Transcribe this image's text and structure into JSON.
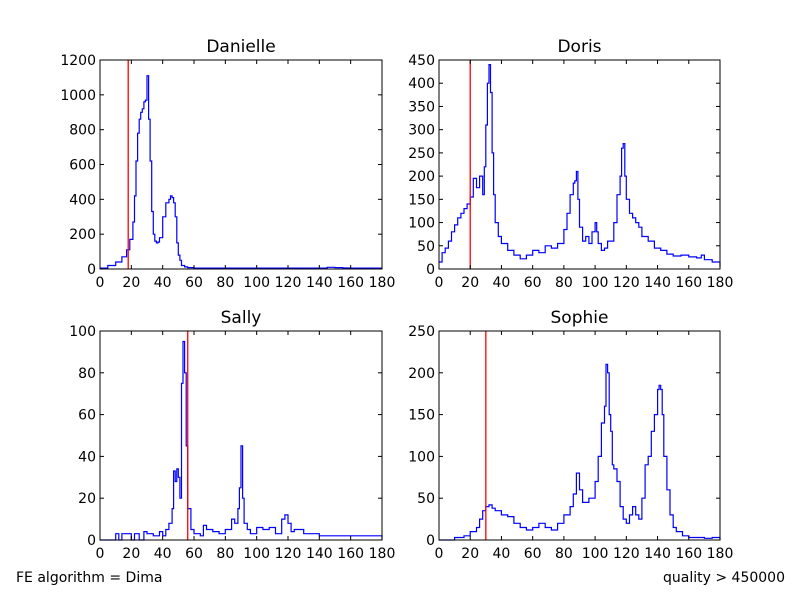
{
  "footer": {
    "left": "FE algorithm = Dima",
    "right": "quality > 450000"
  },
  "colors": {
    "histogram": "#0000ff",
    "marker": "#ff0000"
  },
  "chart_data": [
    {
      "type": "line",
      "title": "Danielle",
      "xlim": [
        0,
        180
      ],
      "ylim": [
        0,
        1200
      ],
      "xticks": [
        0,
        20,
        40,
        60,
        80,
        100,
        120,
        140,
        160,
        180
      ],
      "yticks": [
        0,
        200,
        400,
        600,
        800,
        1000,
        1200
      ],
      "marker_x": 18,
      "series": [
        {
          "step": true,
          "x": [
            0,
            5,
            10,
            14,
            17,
            19,
            21,
            22,
            23,
            24,
            25,
            26,
            27,
            28,
            29,
            30,
            31,
            32,
            33,
            34,
            35,
            36,
            37,
            38,
            40,
            42,
            44,
            45,
            46,
            47,
            48,
            49,
            50,
            51,
            52,
            54,
            56,
            60,
            80,
            100,
            120,
            140,
            145,
            150,
            155,
            160,
            180
          ],
          "y": [
            5,
            20,
            40,
            70,
            110,
            170,
            270,
            420,
            620,
            780,
            860,
            900,
            920,
            960,
            970,
            1110,
            860,
            620,
            330,
            200,
            160,
            150,
            155,
            180,
            300,
            380,
            400,
            420,
            410,
            380,
            300,
            150,
            80,
            50,
            20,
            12,
            8,
            5,
            5,
            5,
            5,
            5,
            10,
            8,
            6,
            5,
            5
          ]
        }
      ]
    },
    {
      "type": "line",
      "title": "Doris",
      "xlim": [
        0,
        180
      ],
      "ylim": [
        0,
        450
      ],
      "xticks": [
        0,
        20,
        40,
        60,
        80,
        100,
        120,
        140,
        160,
        180
      ],
      "yticks": [
        0,
        50,
        100,
        150,
        200,
        250,
        300,
        350,
        400,
        450
      ],
      "marker_x": 20,
      "series": [
        {
          "step": true,
          "x": [
            0,
            2,
            4,
            6,
            8,
            10,
            12,
            14,
            16,
            18,
            20,
            22,
            24,
            26,
            28,
            29,
            30,
            31,
            32,
            33,
            34,
            35,
            36,
            38,
            40,
            44,
            48,
            52,
            56,
            60,
            64,
            68,
            72,
            76,
            80,
            82,
            84,
            86,
            87,
            88,
            89,
            90,
            92,
            94,
            96,
            98,
            100,
            101,
            102,
            104,
            106,
            108,
            112,
            114,
            116,
            117,
            118,
            119,
            120,
            122,
            124,
            126,
            128,
            130,
            134,
            138,
            142,
            146,
            150,
            155,
            160,
            165,
            168,
            170,
            175,
            180
          ],
          "y": [
            15,
            35,
            45,
            60,
            80,
            95,
            110,
            120,
            130,
            140,
            155,
            195,
            175,
            200,
            160,
            220,
            310,
            400,
            440,
            380,
            250,
            160,
            100,
            70,
            55,
            40,
            30,
            22,
            30,
            40,
            35,
            50,
            45,
            55,
            85,
            120,
            160,
            185,
            190,
            210,
            150,
            90,
            60,
            70,
            55,
            80,
            100,
            80,
            55,
            40,
            45,
            60,
            100,
            160,
            200,
            260,
            270,
            200,
            150,
            120,
            110,
            100,
            90,
            70,
            60,
            45,
            40,
            32,
            28,
            30,
            26,
            24,
            30,
            20,
            15,
            5
          ]
        }
      ]
    },
    {
      "type": "line",
      "title": "Sally",
      "xlim": [
        0,
        180
      ],
      "ylim": [
        0,
        100
      ],
      "xticks": [
        0,
        20,
        40,
        60,
        80,
        100,
        120,
        140,
        160,
        180
      ],
      "yticks": [
        0,
        20,
        40,
        60,
        80,
        100
      ],
      "marker_x": 56,
      "series": [
        {
          "step": true,
          "x": [
            0,
            10,
            12,
            14,
            20,
            22,
            25,
            28,
            30,
            34,
            38,
            40,
            42,
            44,
            46,
            47,
            48,
            49,
            50,
            51,
            52,
            53,
            54,
            55,
            56,
            58,
            60,
            64,
            66,
            68,
            72,
            76,
            80,
            84,
            86,
            88,
            89,
            90,
            91,
            92,
            94,
            96,
            100,
            104,
            108,
            112,
            116,
            118,
            120,
            122,
            124,
            130,
            140,
            150,
            160,
            170,
            180
          ],
          "y": [
            0,
            3,
            0,
            3,
            0,
            3,
            0,
            4,
            3,
            2,
            4,
            2,
            5,
            8,
            15,
            33,
            28,
            34,
            30,
            20,
            75,
            95,
            80,
            45,
            15,
            5,
            3,
            2,
            7,
            5,
            4,
            3,
            5,
            10,
            8,
            15,
            25,
            45,
            20,
            8,
            5,
            3,
            6,
            5,
            6,
            3,
            10,
            12,
            8,
            4,
            5,
            3,
            2,
            2,
            2,
            2,
            0
          ]
        }
      ]
    },
    {
      "type": "line",
      "title": "Sophie",
      "xlim": [
        0,
        180
      ],
      "ylim": [
        0,
        250
      ],
      "xticks": [
        0,
        20,
        40,
        60,
        80,
        100,
        120,
        140,
        160,
        180
      ],
      "yticks": [
        0,
        50,
        100,
        150,
        200,
        250
      ],
      "marker_x": 30,
      "series": [
        {
          "step": true,
          "x": [
            0,
            10,
            16,
            20,
            24,
            26,
            28,
            30,
            32,
            34,
            36,
            40,
            44,
            48,
            52,
            56,
            60,
            64,
            68,
            72,
            76,
            80,
            84,
            86,
            88,
            90,
            92,
            96,
            100,
            102,
            104,
            106,
            107,
            108,
            109,
            110,
            111,
            112,
            114,
            116,
            118,
            120,
            122,
            124,
            126,
            128,
            130,
            132,
            134,
            136,
            138,
            140,
            141,
            142,
            143,
            144,
            146,
            148,
            150,
            152,
            156,
            160,
            170,
            175,
            180
          ],
          "y": [
            0,
            3,
            5,
            10,
            15,
            25,
            35,
            40,
            42,
            38,
            35,
            30,
            28,
            20,
            15,
            12,
            15,
            20,
            15,
            12,
            20,
            30,
            40,
            55,
            80,
            60,
            45,
            50,
            70,
            100,
            140,
            160,
            210,
            200,
            150,
            130,
            90,
            85,
            70,
            40,
            25,
            20,
            30,
            40,
            30,
            25,
            50,
            90,
            100,
            130,
            150,
            180,
            185,
            180,
            150,
            100,
            60,
            30,
            15,
            10,
            5,
            3,
            2,
            3,
            0
          ]
        }
      ]
    }
  ]
}
